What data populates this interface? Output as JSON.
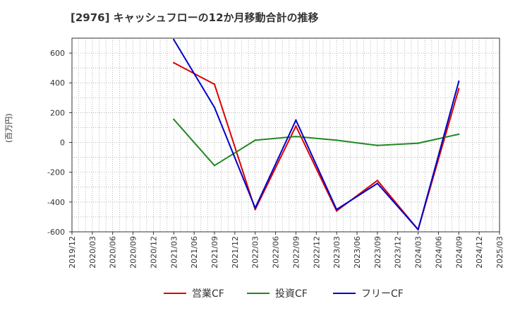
{
  "chart_data": {
    "type": "line",
    "title": "[2976]  キャッシュフローの12か月移動合計の推移",
    "ylabel": "(百万円)",
    "xlabel": "",
    "ylim": [
      -600,
      700
    ],
    "yticks": [
      600,
      400,
      200,
      0,
      -200,
      -400,
      -600
    ],
    "ytick_labels": [
      "600",
      "400",
      "200",
      "0",
      "-200",
      "-400",
      "-600"
    ],
    "categories": [
      "2019/12",
      "2020/03",
      "2020/06",
      "2020/09",
      "2020/12",
      "2021/03",
      "2021/06",
      "2021/09",
      "2021/12",
      "2022/03",
      "2022/06",
      "2022/09",
      "2022/12",
      "2023/03",
      "2023/06",
      "2023/09",
      "2023/12",
      "2024/03",
      "2024/06",
      "2024/09",
      "2024/12",
      "2025/03"
    ],
    "grid": true,
    "legend_position": "bottom",
    "series": [
      {
        "name": "営業CF",
        "color": "#dd0000",
        "values": [
          null,
          null,
          null,
          null,
          null,
          535,
          null,
          390,
          null,
          -450,
          null,
          110,
          null,
          -460,
          null,
          -255,
          null,
          -585,
          null,
          360,
          null,
          null
        ]
      },
      {
        "name": "投資CF",
        "color": "#228822",
        "values": [
          null,
          null,
          null,
          null,
          null,
          155,
          null,
          -155,
          null,
          15,
          null,
          40,
          null,
          15,
          null,
          -20,
          null,
          -5,
          null,
          55,
          null,
          null
        ]
      },
      {
        "name": "フリーCF",
        "color": "#0000cc",
        "values": [
          null,
          null,
          null,
          null,
          null,
          690,
          null,
          235,
          null,
          -440,
          null,
          150,
          null,
          -450,
          null,
          -275,
          null,
          -585,
          null,
          410,
          null,
          null
        ]
      }
    ]
  }
}
